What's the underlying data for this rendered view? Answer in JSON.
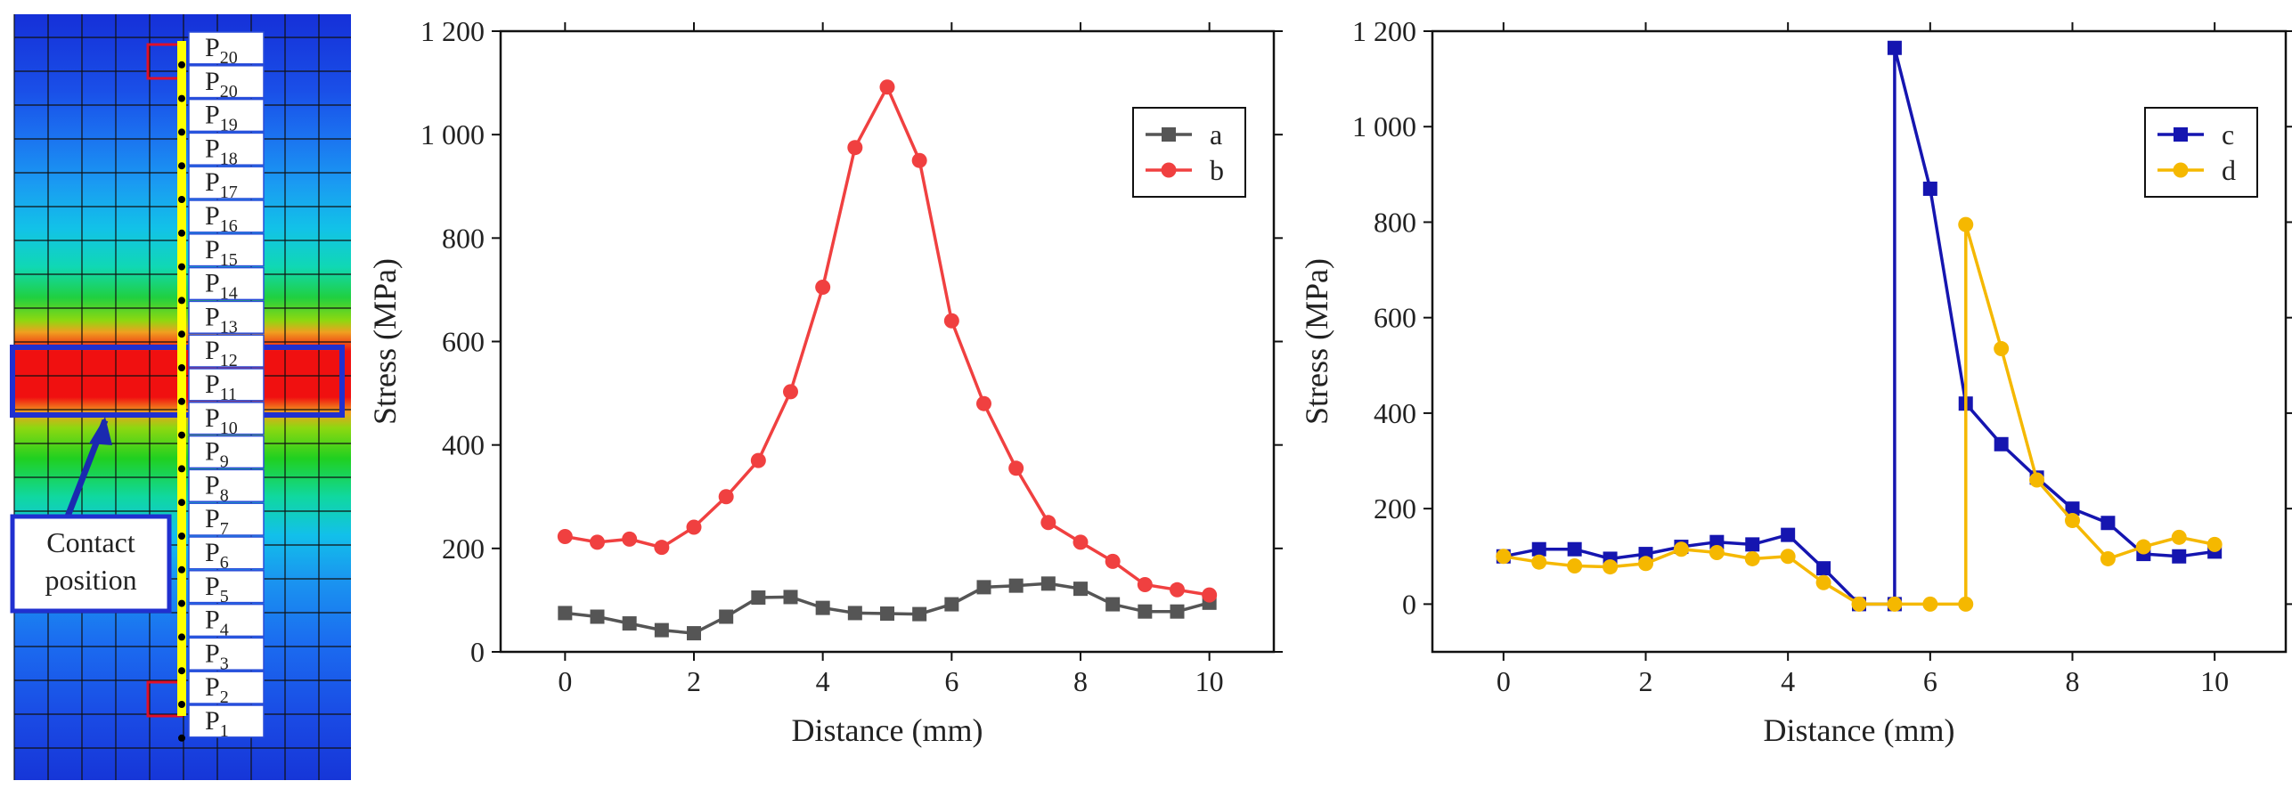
{
  "contour_panel": {
    "point_labels": [
      {
        "base": "P",
        "sub": "20"
      },
      {
        "base": "P",
        "sub": "20"
      },
      {
        "base": "P",
        "sub": "19"
      },
      {
        "base": "P",
        "sub": "18"
      },
      {
        "base": "P",
        "sub": "17"
      },
      {
        "base": "P",
        "sub": "16"
      },
      {
        "base": "P",
        "sub": "15"
      },
      {
        "base": "P",
        "sub": "14"
      },
      {
        "base": "P",
        "sub": "13"
      },
      {
        "base": "P",
        "sub": "12"
      },
      {
        "base": "P",
        "sub": "11"
      },
      {
        "base": "P",
        "sub": "10"
      },
      {
        "base": "P",
        "sub": "9"
      },
      {
        "base": "P",
        "sub": "8"
      },
      {
        "base": "P",
        "sub": "7"
      },
      {
        "base": "P",
        "sub": "6"
      },
      {
        "base": "P",
        "sub": "5"
      },
      {
        "base": "P",
        "sub": "4"
      },
      {
        "base": "P",
        "sub": "3"
      },
      {
        "base": "P",
        "sub": "2"
      },
      {
        "base": "P",
        "sub": "1"
      }
    ],
    "annotation": [
      "Contact",
      "position"
    ],
    "colors": {
      "blue_dark": "#1530d8",
      "blue": "#1a5cf0",
      "light_blue": "#1c8cf2",
      "cyan": "#12c6e8",
      "teal": "#10d8b4",
      "green": "#20d020",
      "yellow_green": "#8ed810",
      "orange": "#f0a020",
      "red": "#f01010",
      "contact_line": "#ffff00",
      "highlight_frame": "#2030d0",
      "marker_box": "#e0102a"
    }
  },
  "chart_data": [
    {
      "type": "line",
      "xlabel": "Distance (mm)",
      "ylabel": "Stress (MPa)",
      "xlim": [
        -1,
        11
      ],
      "ylim": [
        0,
        1200
      ],
      "x_ticks": [
        0,
        2,
        4,
        6,
        8,
        10
      ],
      "y_ticks": [
        0,
        200,
        400,
        600,
        800,
        1000,
        1200
      ],
      "y_tick_labels": [
        "0",
        "200",
        "400",
        "600",
        "800",
        "1 000",
        "1 200"
      ],
      "legend_position": "top-right",
      "series": [
        {
          "name": "a",
          "color": "#555555",
          "marker": "square",
          "x": [
            0,
            0.5,
            1,
            1.5,
            2,
            2.5,
            3,
            3.5,
            4,
            4.5,
            5,
            5.5,
            6,
            6.5,
            7,
            7.5,
            8,
            8.5,
            9,
            9.5,
            10
          ],
          "y": [
            75,
            68,
            55,
            42,
            36,
            68,
            105,
            106,
            85,
            75,
            74,
            73,
            92,
            125,
            128,
            132,
            122,
            92,
            78,
            78,
            95
          ]
        },
        {
          "name": "b",
          "color": "#f04040",
          "marker": "circle",
          "x": [
            0,
            0.5,
            1,
            1.5,
            2,
            2.5,
            3,
            3.5,
            4,
            4.5,
            5,
            5.5,
            6,
            6.5,
            7,
            7.5,
            8,
            8.5,
            9,
            9.5,
            10
          ],
          "y": [
            223,
            212,
            218,
            202,
            241,
            300,
            370,
            503,
            705,
            975,
            1092,
            950,
            640,
            480,
            355,
            250,
            212,
            175,
            130,
            120,
            110
          ]
        }
      ]
    },
    {
      "type": "line",
      "xlabel": "Distance (mm)",
      "ylabel": "Stress (MPa)",
      "xlim": [
        -1,
        11
      ],
      "ylim": [
        -100,
        1200
      ],
      "x_ticks": [
        0,
        2,
        4,
        6,
        8,
        10
      ],
      "y_ticks": [
        0,
        200,
        400,
        600,
        800,
        1000,
        1200
      ],
      "y_tick_labels": [
        "0",
        "200",
        "400",
        "600",
        "800",
        "1 000",
        "1 200"
      ],
      "legend_position": "top-right",
      "series": [
        {
          "name": "c",
          "color": "#1515b0",
          "marker": "square",
          "x": [
            0,
            0.5,
            1,
            1.5,
            2,
            2.5,
            3,
            3.5,
            4,
            4.5,
            5,
            5.5,
            5.5,
            6,
            6.5,
            7,
            7.5,
            8,
            8.5,
            9,
            9.5,
            10
          ],
          "y": [
            100,
            115,
            115,
            95,
            105,
            120,
            130,
            125,
            145,
            75,
            0,
            0,
            1165,
            870,
            420,
            335,
            265,
            200,
            170,
            105,
            100,
            110
          ]
        },
        {
          "name": "d",
          "color": "#f5b800",
          "marker": "circle",
          "x": [
            0,
            0.5,
            1,
            1.5,
            2,
            2.5,
            3,
            3.5,
            4,
            4.5,
            5,
            5.5,
            6,
            6.5,
            6.5,
            7,
            7.5,
            8,
            8.5,
            9,
            9.5,
            10
          ],
          "y": [
            100,
            88,
            80,
            78,
            85,
            115,
            108,
            95,
            100,
            45,
            0,
            0,
            0,
            0,
            795,
            535,
            260,
            175,
            95,
            120,
            140,
            125
          ]
        }
      ]
    }
  ]
}
